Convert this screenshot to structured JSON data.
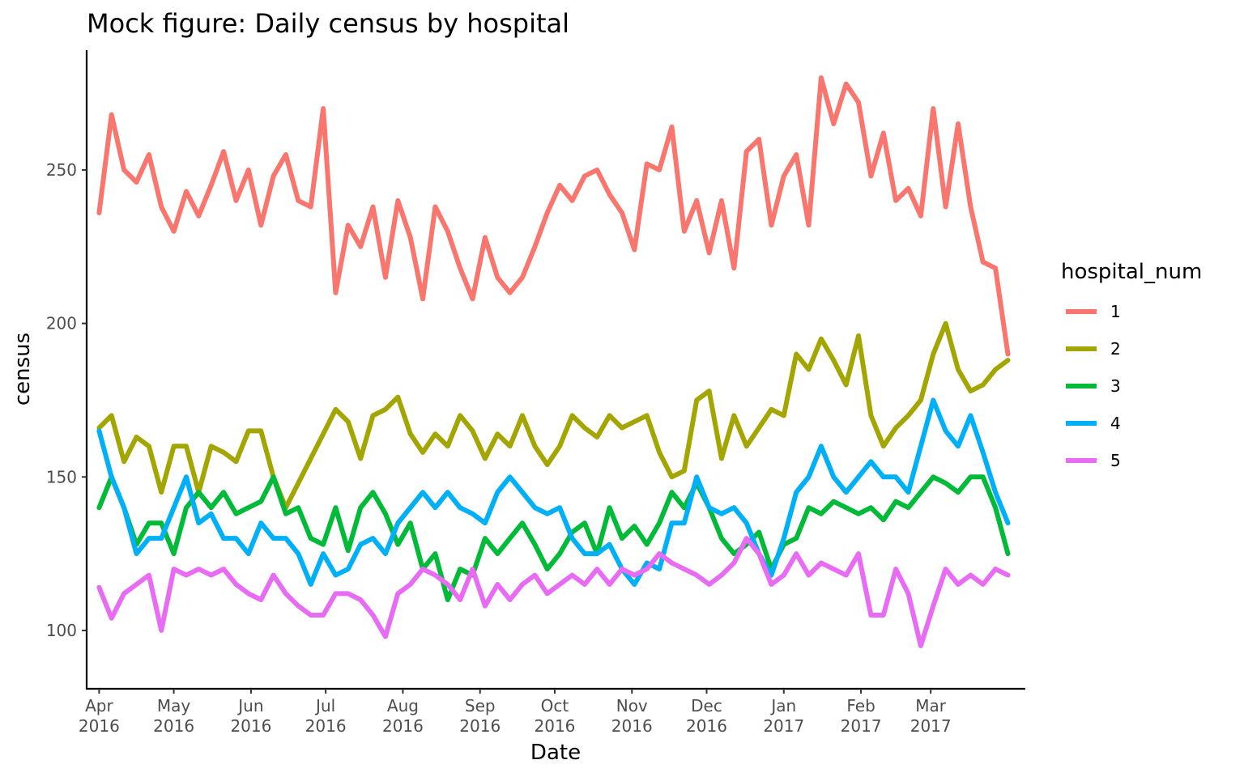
{
  "chart_data": {
    "type": "line",
    "title": "Mock figure: Daily census by hospital",
    "xlabel": "Date",
    "ylabel": "census",
    "xlim": [
      "2016-03-27",
      "2017-04-08"
    ],
    "ylim": [
      81,
      289
    ],
    "grid": false,
    "legend_position": "right",
    "legend_title": "hospital_num",
    "x_ticks": [
      {
        "date": "2016-04-01",
        "line1": "Apr",
        "line2": "2016"
      },
      {
        "date": "2016-05-01",
        "line1": "May",
        "line2": "2016"
      },
      {
        "date": "2016-06-01",
        "line1": "Jun",
        "line2": "2016"
      },
      {
        "date": "2016-07-01",
        "line1": "Jul",
        "line2": "2016"
      },
      {
        "date": "2016-08-01",
        "line1": "Aug",
        "line2": "2016"
      },
      {
        "date": "2016-09-01",
        "line1": "Sep",
        "line2": "2016"
      },
      {
        "date": "2016-10-01",
        "line1": "Oct",
        "line2": "2016"
      },
      {
        "date": "2016-11-01",
        "line1": "Nov",
        "line2": "2016"
      },
      {
        "date": "2016-12-01",
        "line1": "Dec",
        "line2": "2016"
      },
      {
        "date": "2017-01-01",
        "line1": "Jan",
        "line2": "2017"
      },
      {
        "date": "2017-02-01",
        "line1": "Feb",
        "line2": "2017"
      },
      {
        "date": "2017-03-01",
        "line1": "Mar",
        "line2": "2017"
      }
    ],
    "y_ticks": [
      100,
      150,
      200,
      250
    ],
    "x": [
      "2016-04-01",
      "2016-04-06",
      "2016-04-11",
      "2016-04-16",
      "2016-04-21",
      "2016-04-26",
      "2016-05-01",
      "2016-05-06",
      "2016-05-11",
      "2016-05-16",
      "2016-05-21",
      "2016-05-26",
      "2016-05-31",
      "2016-06-05",
      "2016-06-10",
      "2016-06-15",
      "2016-06-20",
      "2016-06-25",
      "2016-06-30",
      "2016-07-05",
      "2016-07-10",
      "2016-07-15",
      "2016-07-20",
      "2016-07-25",
      "2016-07-30",
      "2016-08-04",
      "2016-08-09",
      "2016-08-14",
      "2016-08-19",
      "2016-08-24",
      "2016-08-29",
      "2016-09-03",
      "2016-09-08",
      "2016-09-13",
      "2016-09-18",
      "2016-09-23",
      "2016-09-28",
      "2016-10-03",
      "2016-10-08",
      "2016-10-13",
      "2016-10-18",
      "2016-10-23",
      "2016-10-28",
      "2016-11-02",
      "2016-11-07",
      "2016-11-12",
      "2016-11-17",
      "2016-11-22",
      "2016-11-27",
      "2016-12-02",
      "2016-12-07",
      "2016-12-12",
      "2016-12-17",
      "2016-12-22",
      "2016-12-27",
      "2017-01-01",
      "2017-01-06",
      "2017-01-11",
      "2017-01-16",
      "2017-01-21",
      "2017-01-26",
      "2017-01-31",
      "2017-02-05",
      "2017-02-10",
      "2017-02-15",
      "2017-02-20",
      "2017-02-25",
      "2017-03-02",
      "2017-03-07",
      "2017-03-12",
      "2017-03-17",
      "2017-03-22",
      "2017-03-27",
      "2017-04-01"
    ],
    "series": [
      {
        "name": "1",
        "color": "#F8766D",
        "values": [
          236,
          268,
          250,
          246,
          255,
          238,
          230,
          243,
          235,
          245,
          256,
          240,
          250,
          232,
          248,
          255,
          240,
          238,
          270,
          210,
          232,
          225,
          238,
          215,
          240,
          228,
          208,
          238,
          230,
          218,
          208,
          228,
          215,
          210,
          215,
          225,
          236,
          245,
          240,
          248,
          250,
          242,
          236,
          224,
          252,
          250,
          264,
          230,
          240,
          223,
          240,
          218,
          256,
          260,
          232,
          248,
          255,
          232,
          280,
          265,
          278,
          272,
          248,
          262,
          240,
          244,
          235,
          270,
          238,
          265,
          238,
          220,
          218,
          190
        ]
      },
      {
        "name": "2",
        "color": "#A3A500",
        "values": [
          166,
          170,
          155,
          163,
          160,
          145,
          160,
          160,
          145,
          160,
          158,
          155,
          165,
          165,
          150,
          140,
          148,
          156,
          164,
          172,
          168,
          156,
          170,
          172,
          176,
          164,
          158,
          164,
          160,
          170,
          165,
          156,
          164,
          160,
          170,
          160,
          154,
          160,
          170,
          166,
          163,
          170,
          166,
          168,
          170,
          158,
          150,
          152,
          175,
          178,
          156,
          170,
          160,
          166,
          172,
          170,
          190,
          185,
          195,
          188,
          180,
          196,
          170,
          160,
          166,
          170,
          175,
          190,
          200,
          185,
          178,
          180,
          185,
          188
        ]
      },
      {
        "name": "3",
        "color": "#00BA38",
        "values": [
          140,
          150,
          140,
          128,
          135,
          135,
          125,
          140,
          145,
          140,
          145,
          138,
          140,
          142,
          150,
          138,
          140,
          130,
          128,
          140,
          126,
          140,
          145,
          138,
          128,
          135,
          120,
          125,
          110,
          120,
          118,
          130,
          125,
          130,
          135,
          128,
          120,
          125,
          132,
          135,
          125,
          140,
          130,
          134,
          128,
          135,
          145,
          140,
          148,
          140,
          130,
          125,
          128,
          132,
          120,
          128,
          130,
          140,
          138,
          142,
          140,
          138,
          140,
          136,
          142,
          140,
          145,
          150,
          148,
          145,
          150,
          150,
          140,
          125
        ]
      },
      {
        "name": "4",
        "color": "#00B0F6",
        "values": [
          165,
          150,
          140,
          125,
          130,
          130,
          140,
          150,
          135,
          138,
          130,
          130,
          125,
          135,
          130,
          130,
          125,
          115,
          125,
          118,
          120,
          128,
          130,
          125,
          135,
          140,
          145,
          140,
          145,
          140,
          138,
          135,
          145,
          150,
          145,
          140,
          138,
          140,
          130,
          125,
          125,
          128,
          120,
          115,
          122,
          120,
          135,
          135,
          150,
          140,
          138,
          140,
          135,
          125,
          118,
          130,
          145,
          150,
          160,
          150,
          145,
          150,
          155,
          150,
          150,
          145,
          160,
          175,
          165,
          160,
          170,
          158,
          145,
          135
        ]
      },
      {
        "name": "5",
        "color": "#E76BF3",
        "values": [
          114,
          104,
          112,
          115,
          118,
          100,
          120,
          118,
          120,
          118,
          120,
          115,
          112,
          110,
          118,
          112,
          108,
          105,
          105,
          112,
          112,
          110,
          105,
          98,
          112,
          115,
          120,
          118,
          115,
          110,
          120,
          108,
          115,
          110,
          115,
          118,
          112,
          115,
          118,
          115,
          120,
          115,
          120,
          118,
          120,
          125,
          122,
          120,
          118,
          115,
          118,
          122,
          130,
          125,
          115,
          118,
          125,
          118,
          122,
          120,
          118,
          125,
          105,
          105,
          120,
          112,
          95,
          108,
          120,
          115,
          118,
          115,
          120,
          118
        ]
      }
    ]
  }
}
